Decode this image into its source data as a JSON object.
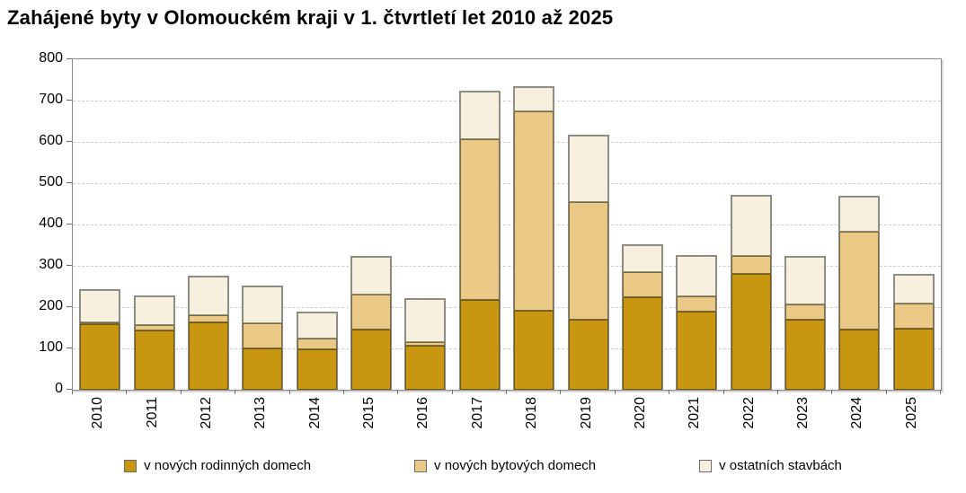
{
  "chart_data": {
    "type": "bar",
    "stacked": true,
    "title": "Zahájené byty v Olomouckém kraji v 1. čtvrtletí let 2010 až 2025",
    "categories": [
      "2010",
      "2011",
      "2012",
      "2013",
      "2014",
      "2015",
      "2016",
      "2017",
      "2018",
      "2019",
      "2020",
      "2021",
      "2022",
      "2023",
      "2024",
      "2025"
    ],
    "series": [
      {
        "name": "v nových rodinných domech",
        "color": "#C89611",
        "border_color": "#6e5a14",
        "values": [
          158,
          144,
          162,
          100,
          97,
          145,
          106,
          218,
          192,
          170,
          225,
          190,
          280,
          170,
          145,
          148
        ]
      },
      {
        "name": "v nových bytových domech",
        "color": "#EAC885",
        "border_color": "#7c6a3c",
        "values": [
          2,
          12,
          18,
          60,
          28,
          85,
          9,
          389,
          483,
          285,
          60,
          36,
          45,
          37,
          237,
          60
        ]
      },
      {
        "name": "v ostatních stavbách",
        "color": "#F7F0DF",
        "border_color": "#90907e",
        "values": [
          80,
          71,
          93,
          90,
          63,
          92,
          105,
          115,
          57,
          160,
          65,
          97,
          145,
          115,
          85,
          70
        ]
      }
    ],
    "totals": [
      240,
      227,
      273,
      250,
      188,
      322,
      220,
      722,
      732,
      615,
      350,
      323,
      470,
      322,
      467,
      278
    ],
    "ylim": [
      0,
      800
    ],
    "ytick_step": 100,
    "xlabel": "",
    "ylabel": "",
    "grid": "horizontal-dashed",
    "legend_position": "bottom",
    "axis_color": "#8a8a8a",
    "grid_color": "#cdcdcd",
    "background_color": "#ffffff",
    "title_color": "#000000"
  }
}
